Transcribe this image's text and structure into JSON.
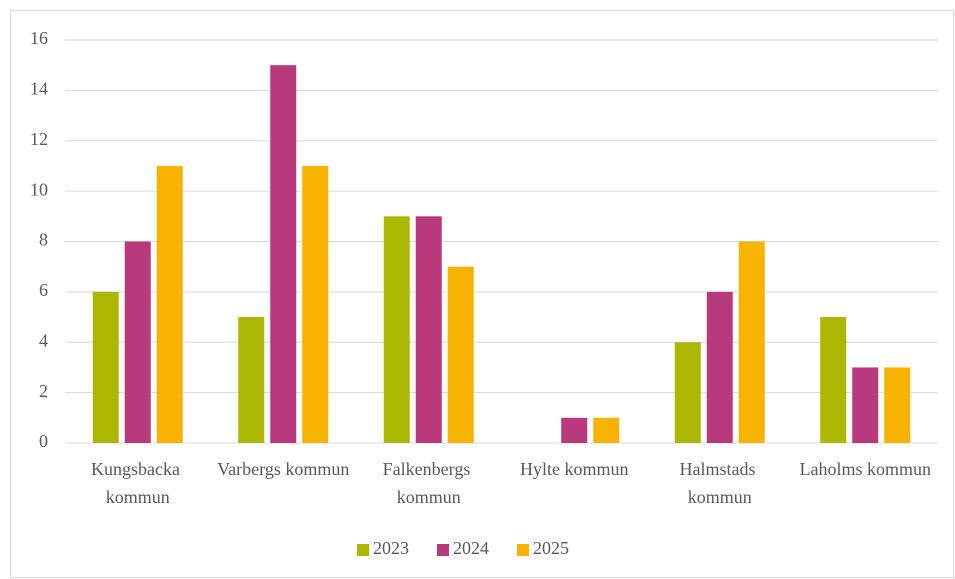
{
  "chart_data": {
    "type": "bar",
    "categories": [
      "Kungsbacka kommun",
      "Varbergs kommun",
      "Falkenbergs kommun",
      "Hylte kommun",
      "Halmstads kommun",
      "Laholms kommun"
    ],
    "series": [
      {
        "name": "2023",
        "color": "#abb700",
        "values": [
          6,
          5,
          9,
          0,
          4,
          5
        ]
      },
      {
        "name": "2024",
        "color": "#b8397c",
        "values": [
          8,
          15,
          9,
          1,
          6,
          3
        ]
      },
      {
        "name": "2025",
        "color": "#f8b300",
        "values": [
          11,
          11,
          7,
          1,
          8,
          3
        ]
      }
    ],
    "ylim": [
      0,
      16
    ],
    "yticks": [
      0,
      2,
      4,
      6,
      8,
      10,
      12,
      14,
      16
    ],
    "grid": true,
    "legend": "bottom"
  }
}
